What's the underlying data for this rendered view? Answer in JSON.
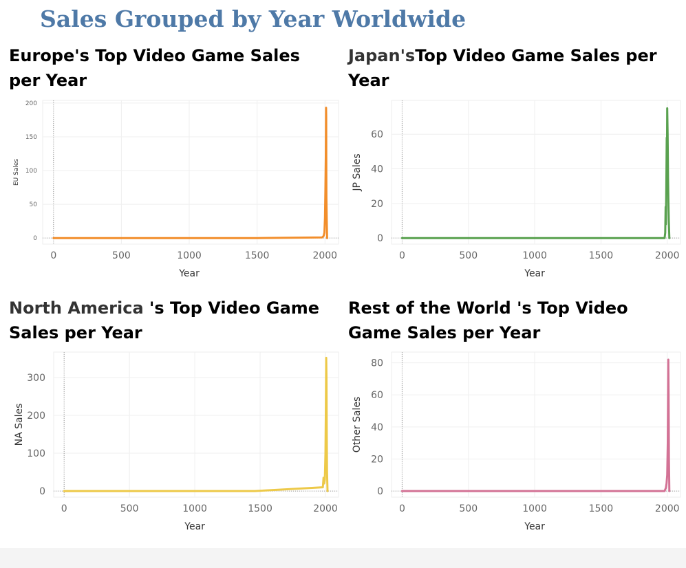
{
  "main_title": "Sales Grouped by Year Worldwide",
  "panels": [
    {
      "region": "Europe",
      "title_rest_line1": "'s Top Video Game Sales",
      "title_line2": "per Year"
    },
    {
      "region": "Japan's",
      "title_rest_line1": "Top Video Game Sales per",
      "title_line2": "Year"
    },
    {
      "region": "North America ",
      "title_rest_line1": "'s Top Video Game",
      "title_line2": "Sales per Year"
    },
    {
      "region": "Rest of the World ",
      "title_rest_line1": "'s Top Video",
      "title_line2": "Game Sales per Year"
    }
  ],
  "chart_data": [
    {
      "type": "line",
      "title": "Europe's Top Video Game Sales per Year",
      "xlabel": "Year",
      "ylabel": "EU Sales",
      "xlim": [
        0,
        2020
      ],
      "ylim": [
        0,
        200
      ],
      "xticks": [
        0,
        500,
        1000,
        1500,
        2000
      ],
      "yticks": [
        0,
        50,
        100,
        150,
        200
      ],
      "color": "#f28e2b",
      "grid": true,
      "zero_line": true,
      "x": [
        0,
        500,
        1000,
        1500,
        1980,
        1990,
        1996,
        2000,
        2003,
        2006,
        2008,
        2009,
        2010,
        2011,
        2014,
        2016
      ],
      "y": [
        0,
        0,
        0,
        0,
        1,
        3,
        8,
        30,
        70,
        120,
        193,
        180,
        120,
        60,
        20,
        0
      ]
    },
    {
      "type": "line",
      "title": "Japan's Top Video Game Sales per Year",
      "xlabel": "Year",
      "ylabel": "JP Sales",
      "xlim": [
        0,
        2020
      ],
      "ylim": [
        0,
        78
      ],
      "xticks": [
        0,
        500,
        1000,
        1500,
        2000
      ],
      "yticks": [
        0,
        20,
        40,
        60
      ],
      "color": "#59a14f",
      "grid": true,
      "zero_line": true,
      "x": [
        0,
        500,
        1000,
        1500,
        1980,
        1985,
        1988,
        1990,
        1993,
        1996,
        1998,
        2000,
        2003,
        2006,
        2009,
        2012,
        2016
      ],
      "y": [
        0,
        0,
        0,
        0,
        0,
        3,
        18,
        8,
        30,
        58,
        45,
        75,
        60,
        35,
        20,
        10,
        0
      ]
    },
    {
      "type": "line",
      "title": "North America 's Top Video Game Sales per Year",
      "xlabel": "Year",
      "ylabel": "NA Sales",
      "xlim": [
        0,
        2020
      ],
      "ylim": [
        0,
        360
      ],
      "xticks": [
        0,
        500,
        1000,
        1500,
        2000
      ],
      "yticks": [
        0,
        100,
        200,
        300
      ],
      "color": "#edc948",
      "grid": true,
      "zero_line": true,
      "x": [
        0,
        500,
        1000,
        1460,
        1980,
        1985,
        1990,
        1995,
        2000,
        2003,
        2006,
        2008,
        2010,
        2012,
        2016
      ],
      "y": [
        0,
        0,
        0,
        0,
        10,
        35,
        20,
        30,
        100,
        220,
        352,
        300,
        150,
        50,
        0
      ]
    },
    {
      "type": "line",
      "title": "Rest of the World 's Top Video Game Sales per Year",
      "xlabel": "Year",
      "ylabel": "Other Sales",
      "xlim": [
        0,
        2020
      ],
      "ylim": [
        0,
        85
      ],
      "xticks": [
        0,
        500,
        1000,
        1500,
        2000
      ],
      "yticks": [
        0,
        20,
        40,
        60,
        80
      ],
      "color": "#d37295",
      "grid": true,
      "zero_line": true,
      "x": [
        0,
        500,
        1000,
        1500,
        1980,
        1990,
        1995,
        2000,
        2004,
        2008,
        2010,
        2013,
        2016
      ],
      "y": [
        0,
        0,
        0,
        0,
        0,
        2,
        5,
        10,
        30,
        82,
        60,
        20,
        0
      ]
    }
  ]
}
